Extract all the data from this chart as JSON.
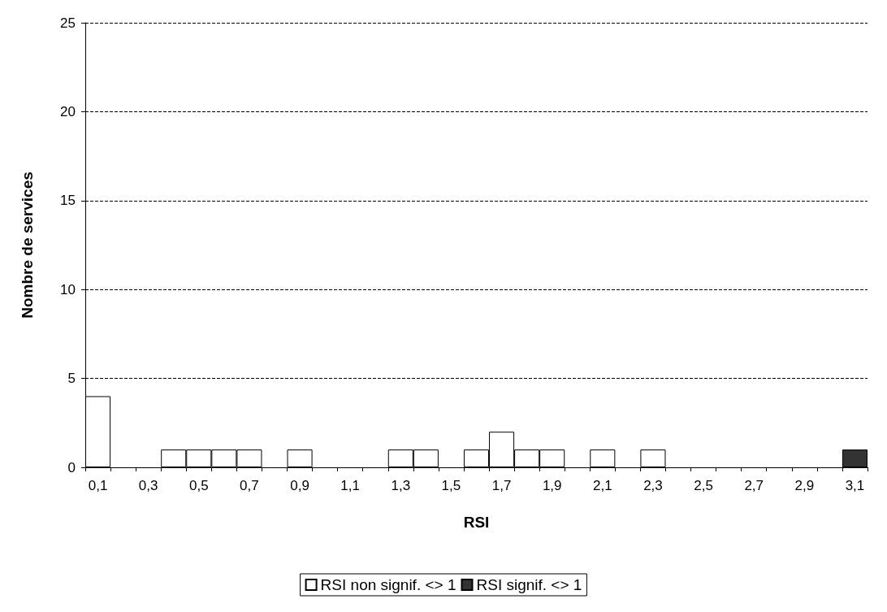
{
  "chart_data": {
    "type": "bar",
    "xlabel": "RSI",
    "ylabel": "Nombre de services",
    "categories": [
      "0,1",
      null,
      "0,3",
      null,
      "0,5",
      null,
      "0,7",
      null,
      "0,9",
      null,
      "1,1",
      null,
      "1,3",
      null,
      "1,5",
      null,
      "1,7",
      null,
      "1,9",
      null,
      "2,1",
      null,
      "2,3",
      null,
      "2,5",
      null,
      "2,7",
      null,
      "2,9",
      null,
      "3,1"
    ],
    "series": [
      {
        "name": "RSI non signif. <> 1",
        "color": "#ffffff",
        "values": [
          4,
          0,
          0,
          1,
          1,
          1,
          1,
          0,
          1,
          0,
          0,
          0,
          1,
          1,
          0,
          1,
          2,
          1,
          1,
          0,
          1,
          0,
          1,
          0,
          0,
          0,
          0,
          0,
          0,
          0,
          0
        ]
      },
      {
        "name": "RSI signif. <> 1",
        "color": "#333333",
        "values": [
          0,
          0,
          0,
          0,
          0,
          0,
          0,
          0,
          0,
          0,
          0,
          0,
          0,
          0,
          0,
          0,
          0,
          0,
          0,
          0,
          0,
          0,
          0,
          0,
          0,
          0,
          0,
          0,
          0,
          0,
          1
        ]
      }
    ],
    "stacked": true,
    "ylim": [
      0,
      25
    ],
    "yticks": [
      0,
      5,
      10,
      15,
      20,
      25
    ],
    "grid": "y",
    "legend": "bottom"
  }
}
